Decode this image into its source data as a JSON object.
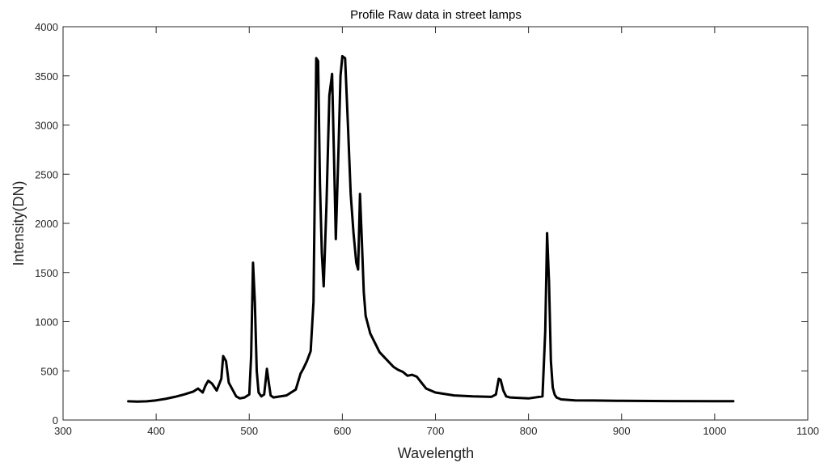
{
  "chart_data": {
    "type": "line",
    "title": "Profile Raw data in street lamps",
    "xlabel": "Wavelength",
    "ylabel": "Intensity(DN)",
    "xlim": [
      300,
      1100
    ],
    "ylim": [
      0,
      4000
    ],
    "xticks": [
      300,
      400,
      500,
      600,
      700,
      800,
      900,
      1000,
      1100
    ],
    "yticks": [
      0,
      500,
      1000,
      1500,
      2000,
      2500,
      3000,
      3500,
      4000
    ],
    "grid": false,
    "legend": "none",
    "line_color": "#000000",
    "series": [
      {
        "x": [
          370,
          380,
          390,
          400,
          410,
          420,
          430,
          440,
          445,
          450,
          453,
          456,
          460,
          465,
          470,
          472,
          475,
          478,
          482,
          486,
          490,
          495,
          500,
          502,
          504,
          506,
          508,
          510,
          513,
          516,
          519,
          521,
          523,
          526,
          530,
          540,
          550,
          555,
          558,
          562,
          566,
          569,
          571,
          572,
          574,
          576,
          578,
          580,
          583,
          586,
          589,
          591,
          593,
          596,
          598,
          600,
          603,
          606,
          609,
          612,
          615,
          617,
          619,
          621,
          623,
          625,
          630,
          640,
          650,
          655,
          660,
          665,
          670,
          675,
          680,
          685,
          690,
          700,
          720,
          740,
          760,
          765,
          768,
          770,
          773,
          776,
          780,
          800,
          815,
          818,
          820,
          822,
          824,
          826,
          828,
          830,
          835,
          850,
          870,
          900,
          950,
          1000,
          1020
        ],
        "y": [
          190,
          188,
          190,
          200,
          215,
          235,
          260,
          290,
          320,
          280,
          350,
          400,
          370,
          300,
          420,
          650,
          600,
          380,
          310,
          240,
          220,
          230,
          260,
          650,
          1600,
          1200,
          500,
          280,
          240,
          260,
          520,
          380,
          250,
          230,
          235,
          250,
          310,
          470,
          520,
          600,
          700,
          1200,
          2800,
          3680,
          3650,
          2400,
          1700,
          1360,
          2200,
          3300,
          3520,
          2700,
          1840,
          2800,
          3500,
          3700,
          3680,
          3000,
          2300,
          1900,
          1600,
          1530,
          2300,
          1800,
          1300,
          1060,
          880,
          690,
          590,
          540,
          510,
          490,
          450,
          460,
          440,
          380,
          320,
          280,
          250,
          240,
          235,
          260,
          420,
          410,
          300,
          240,
          230,
          220,
          240,
          900,
          1900,
          1400,
          600,
          330,
          260,
          230,
          210,
          200,
          198,
          195,
          193,
          192,
          192
        ]
      }
    ]
  }
}
